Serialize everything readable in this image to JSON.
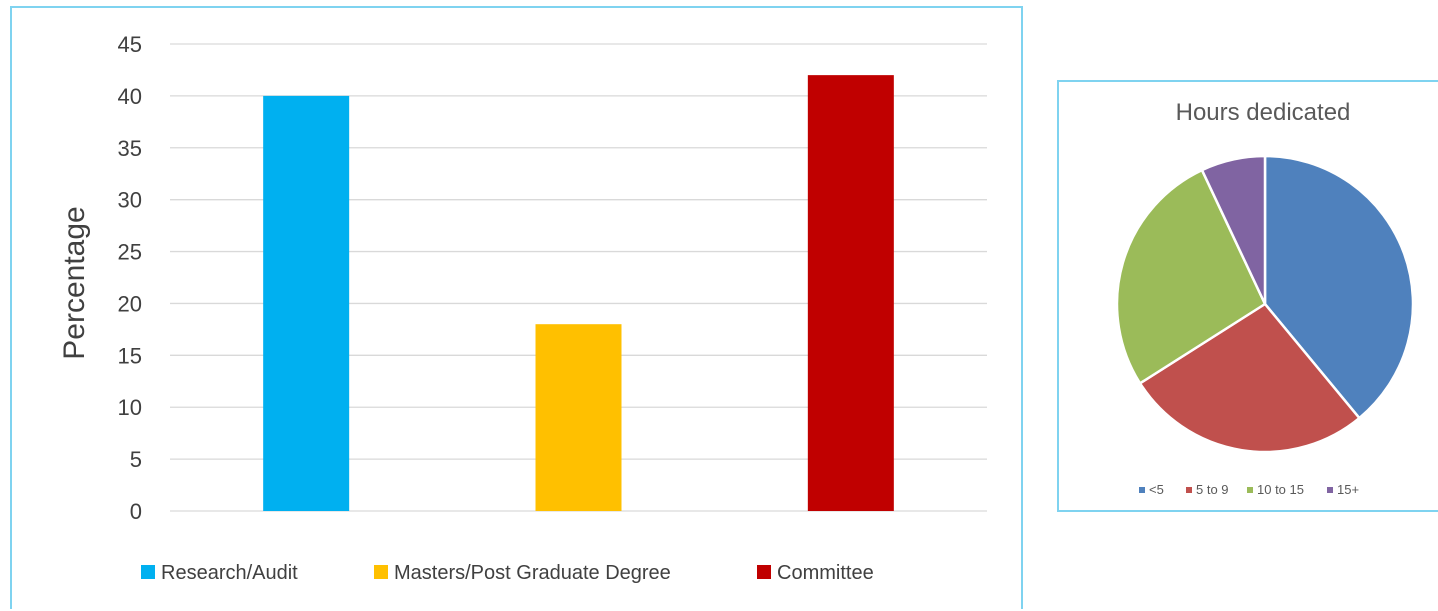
{
  "chart_data": [
    {
      "type": "bar",
      "title": "",
      "xlabel": "",
      "ylabel": "Percentage",
      "ylim": [
        0,
        45
      ],
      "yticks": [
        0,
        5,
        10,
        15,
        20,
        25,
        30,
        35,
        40,
        45
      ],
      "categories": [
        "Research/Audit",
        "Masters/Post Graduate Degree",
        "Committee"
      ],
      "values": [
        40,
        18,
        42
      ],
      "colors": [
        "#00b0f0",
        "#ffc000",
        "#c00000"
      ],
      "grid": true,
      "legend_position": "bottom"
    },
    {
      "type": "pie",
      "title": "Hours dedicated",
      "categories": [
        "<5",
        "5 to 9",
        "10 to 15",
        "15+"
      ],
      "values": [
        39,
        27,
        27,
        7
      ],
      "colors": [
        "#4f81bd",
        "#c0504d",
        "#9bbb59",
        "#8064a2"
      ],
      "legend_position": "bottom"
    }
  ]
}
